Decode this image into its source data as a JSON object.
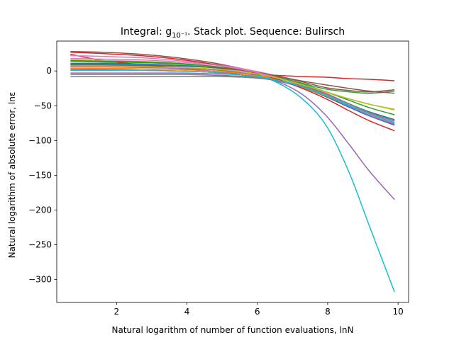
{
  "chart_data": {
    "type": "line",
    "title": "Integral: g",
    "title_sub": "10⁻¹",
    "title_rest": ". Stack plot. Sequence: Bulirsch",
    "xlabel": "Natural logarithm of number of function evaluations, lnN",
    "ylabel": "Natural logarithm of absolute error, lnε",
    "xlim": [
      0.3,
      10.3
    ],
    "ylim": [
      -333,
      43
    ],
    "xticks": [
      2,
      4,
      6,
      8,
      10
    ],
    "yticks": [
      0,
      -50,
      -100,
      -150,
      -200,
      -250,
      -300
    ],
    "legend": "none",
    "grid": false,
    "x": [
      0.69,
      1.61,
      2.71,
      3.74,
      4.7,
      5.6,
      6.45,
      7.23,
      7.95,
      8.6,
      9.2,
      9.9
    ],
    "series": [
      {
        "color": "#1f77b4",
        "values": [
          2,
          2,
          1,
          0,
          -2,
          -6,
          -13,
          -23,
          -37,
          -52,
          -65,
          -78
        ]
      },
      {
        "color": "#ff7f0e",
        "values": [
          8,
          8,
          7,
          5,
          2,
          -3,
          -11,
          -22,
          -35,
          -49,
          -61,
          -72
        ]
      },
      {
        "color": "#2ca02c",
        "values": [
          14,
          13,
          12,
          10,
          6,
          1,
          -7,
          -17,
          -26,
          -30,
          -32,
          -29
        ]
      },
      {
        "color": "#d62728",
        "values": [
          24,
          15,
          9,
          4,
          0,
          -4,
          -6,
          -8,
          -9,
          -11,
          -12,
          -14
        ]
      },
      {
        "color": "#9467bd",
        "values": [
          6,
          6,
          5,
          4,
          2,
          -3,
          -13,
          -32,
          -64,
          -105,
          -145,
          -185
        ]
      },
      {
        "color": "#8c564b",
        "values": [
          28,
          27,
          24,
          19,
          12,
          3,
          -6,
          -14,
          -20,
          -25,
          -29,
          -32
        ]
      },
      {
        "color": "#e377c2",
        "values": [
          22,
          21,
          19,
          15,
          10,
          3,
          -6,
          -18,
          -32,
          -47,
          -60,
          -72
        ]
      },
      {
        "color": "#7f7f7f",
        "values": [
          -8,
          -8,
          -8,
          -8,
          -8,
          -9,
          -13,
          -22,
          -35,
          -50,
          -64,
          -77
        ]
      },
      {
        "color": "#bcbd22",
        "values": [
          16,
          15,
          14,
          11,
          7,
          1,
          -8,
          -19,
          -30,
          -40,
          -48,
          -56
        ]
      },
      {
        "color": "#17becf",
        "values": [
          10,
          10,
          9,
          8,
          6,
          0,
          -14,
          -38,
          -78,
          -145,
          -225,
          -318
        ]
      },
      {
        "color": "#1f77b4",
        "values": [
          11,
          11,
          10,
          8,
          5,
          -1,
          -9,
          -20,
          -33,
          -47,
          -59,
          -70
        ]
      },
      {
        "color": "#ff7f0e",
        "values": [
          4,
          4,
          3,
          2,
          0,
          -4,
          -12,
          -23,
          -36,
          -50,
          -63,
          -75
        ]
      },
      {
        "color": "#2ca02c",
        "values": [
          15,
          14,
          13,
          11,
          7,
          1,
          -7,
          -18,
          -30,
          -42,
          -53,
          -63
        ]
      },
      {
        "color": "#d62728",
        "values": [
          27,
          25,
          22,
          17,
          10,
          1,
          -10,
          -24,
          -40,
          -57,
          -72,
          -86
        ]
      },
      {
        "color": "#9467bd",
        "values": [
          -3,
          -3,
          -3,
          -3,
          -4,
          -6,
          -12,
          -22,
          -35,
          -50,
          -64,
          -76
        ]
      },
      {
        "color": "#8c564b",
        "values": [
          9,
          9,
          8,
          7,
          5,
          1,
          -6,
          -15,
          -24,
          -28,
          -30,
          -27
        ]
      },
      {
        "color": "#e377c2",
        "values": [
          18,
          17,
          16,
          13,
          9,
          2,
          -8,
          -20,
          -34,
          -49,
          -63,
          -75
        ]
      },
      {
        "color": "#7f7f7f",
        "values": [
          -5,
          -5,
          -5,
          -5,
          -6,
          -8,
          -13,
          -21,
          -33,
          -47,
          -60,
          -72
        ]
      },
      {
        "color": "#bcbd22",
        "values": [
          7,
          7,
          6,
          5,
          3,
          -1,
          -9,
          -19,
          -30,
          -40,
          -48,
          -55
        ]
      },
      {
        "color": "#17becf",
        "values": [
          1,
          1,
          1,
          0,
          -2,
          -6,
          -12,
          -22,
          -35,
          -49,
          -62,
          -74
        ]
      }
    ]
  }
}
